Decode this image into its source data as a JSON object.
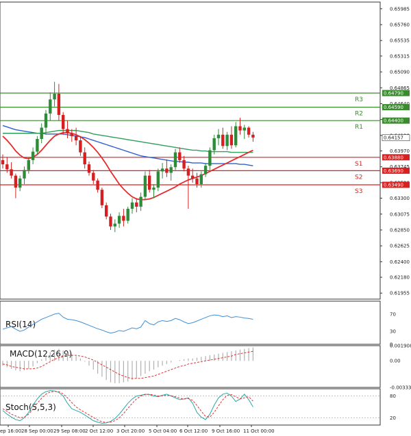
{
  "chart_data": {
    "type": "candlestick",
    "main": {
      "y_ticks": [
        "0.65985",
        "0.65760",
        "0.65535",
        "0.65315",
        "0.65090",
        "0.64865",
        "0.64640",
        "0.64415",
        "0.64190",
        "0.63970",
        "0.63745",
        "0.63520",
        "0.63300",
        "0.63075",
        "0.62850",
        "0.62625",
        "0.62400",
        "0.62180",
        "0.61955"
      ],
      "ylim": [
        0.6187,
        0.6608
      ],
      "current_price": "0.64157",
      "levels": [
        {
          "name": "R3",
          "value": 0.6479,
          "label": "0.64790",
          "color": "#3a8a2e"
        },
        {
          "name": "R2",
          "value": 0.6459,
          "label": "0.64590",
          "color": "#3a8a2e"
        },
        {
          "name": "R1",
          "value": 0.644,
          "label": "0.64400",
          "color": "#3a8a2e"
        },
        {
          "name": "S1",
          "value": 0.6388,
          "label": "0.63880",
          "color": "#d92020"
        },
        {
          "name": "S2",
          "value": 0.6369,
          "label": "0.63690",
          "color": "#d92020"
        },
        {
          "name": "S3",
          "value": 0.6349,
          "label": "0.63490",
          "color": "#d92020"
        }
      ],
      "candles": [
        [
          0.6384,
          0.6392,
          0.6372,
          0.6378
        ],
        [
          0.6378,
          0.6388,
          0.6366,
          0.6371
        ],
        [
          0.6371,
          0.6381,
          0.6358,
          0.6362
        ],
        [
          0.6362,
          0.6365,
          0.633,
          0.6345
        ],
        [
          0.6345,
          0.6362,
          0.634,
          0.6358
        ],
        [
          0.6358,
          0.6375,
          0.635,
          0.637
        ],
        [
          0.637,
          0.6388,
          0.6365,
          0.6384
        ],
        [
          0.6384,
          0.6402,
          0.6378,
          0.6396
        ],
        [
          0.6396,
          0.6418,
          0.6392,
          0.6414
        ],
        [
          0.6414,
          0.6436,
          0.6408,
          0.643
        ],
        [
          0.643,
          0.6455,
          0.642,
          0.645
        ],
        [
          0.645,
          0.648,
          0.644,
          0.647
        ],
        [
          0.647,
          0.6495,
          0.646,
          0.6478
        ],
        [
          0.6478,
          0.6492,
          0.644,
          0.6448
        ],
        [
          0.6448,
          0.6452,
          0.642,
          0.6428
        ],
        [
          0.6428,
          0.644,
          0.6415,
          0.6422
        ],
        [
          0.6422,
          0.6428,
          0.641,
          0.6418
        ],
        [
          0.6418,
          0.643,
          0.6405,
          0.6412
        ],
        [
          0.6412,
          0.6418,
          0.639,
          0.6395
        ],
        [
          0.6395,
          0.6402,
          0.6372,
          0.6378
        ],
        [
          0.6378,
          0.6382,
          0.6362,
          0.6366
        ],
        [
          0.6366,
          0.637,
          0.635,
          0.6355
        ],
        [
          0.6355,
          0.6358,
          0.6338,
          0.6342
        ],
        [
          0.6342,
          0.6345,
          0.6316,
          0.632
        ],
        [
          0.632,
          0.6324,
          0.63,
          0.6304
        ],
        [
          0.6304,
          0.6308,
          0.6285,
          0.629
        ],
        [
          0.629,
          0.63,
          0.6282,
          0.6294
        ],
        [
          0.6294,
          0.631,
          0.6288,
          0.6305
        ],
        [
          0.6305,
          0.6315,
          0.629,
          0.6298
        ],
        [
          0.6298,
          0.6318,
          0.6294,
          0.6315
        ],
        [
          0.6315,
          0.633,
          0.6308,
          0.6324
        ],
        [
          0.6324,
          0.633,
          0.631,
          0.6318
        ],
        [
          0.6318,
          0.6338,
          0.6312,
          0.6332
        ],
        [
          0.6332,
          0.6368,
          0.6328,
          0.6362
        ],
        [
          0.6362,
          0.637,
          0.6338,
          0.6342
        ],
        [
          0.6342,
          0.635,
          0.633,
          0.6345
        ],
        [
          0.6345,
          0.6372,
          0.634,
          0.6368
        ],
        [
          0.6368,
          0.638,
          0.6358,
          0.6372
        ],
        [
          0.6372,
          0.6385,
          0.636,
          0.6366
        ],
        [
          0.6366,
          0.6378,
          0.6355,
          0.6374
        ],
        [
          0.6374,
          0.64,
          0.637,
          0.6395
        ],
        [
          0.6395,
          0.6402,
          0.638,
          0.6384
        ],
        [
          0.6384,
          0.639,
          0.6368,
          0.6372
        ],
        [
          0.6372,
          0.6376,
          0.6315,
          0.6362
        ],
        [
          0.6362,
          0.6372,
          0.6352,
          0.6358
        ],
        [
          0.6358,
          0.6366,
          0.6345,
          0.635
        ],
        [
          0.635,
          0.6368,
          0.6345,
          0.6364
        ],
        [
          0.6364,
          0.638,
          0.636,
          0.6376
        ],
        [
          0.6376,
          0.6402,
          0.637,
          0.6398
        ],
        [
          0.6398,
          0.642,
          0.6392,
          0.6415
        ],
        [
          0.6415,
          0.6428,
          0.6405,
          0.642
        ],
        [
          0.642,
          0.643,
          0.64,
          0.6404
        ],
        [
          0.6404,
          0.6424,
          0.6398,
          0.642
        ],
        [
          0.642,
          0.6432,
          0.64,
          0.6405
        ],
        [
          0.6405,
          0.6438,
          0.6402,
          0.6432
        ],
        [
          0.6432,
          0.6444,
          0.642,
          0.6426
        ],
        [
          0.6426,
          0.6434,
          0.6414,
          0.643
        ],
        [
          0.643,
          0.6432,
          0.6416,
          0.642
        ],
        [
          0.642,
          0.6424,
          0.641,
          0.6416
        ]
      ],
      "series": [
        {
          "color": "#2f5fcf",
          "values": [
            0.6433,
            0.6431,
            0.6429,
            0.6427,
            0.6426,
            0.6425,
            0.6424,
            0.6423,
            0.6422,
            0.6422,
            0.6421,
            0.6421,
            0.6421,
            0.6421,
            0.6421,
            0.642,
            0.6419,
            0.6418,
            0.6417,
            0.6416,
            0.6414,
            0.6412,
            0.641,
            0.6408,
            0.6406,
            0.6404,
            0.6402,
            0.64,
            0.6398,
            0.6396,
            0.6394,
            0.6392,
            0.639,
            0.6389,
            0.6388,
            0.6387,
            0.6386,
            0.6385,
            0.6384,
            0.6383,
            0.6382,
            0.6382,
            0.6381,
            0.6381,
            0.638,
            0.638,
            0.638,
            0.6379,
            0.6379,
            0.6379,
            0.6379,
            0.6379,
            0.6379,
            0.6379,
            0.6379,
            0.6378,
            0.6378,
            0.6377,
            0.6376
          ]
        },
        {
          "color": "#2e9e5b",
          "values": [
            0.6422,
            0.6422,
            0.6422,
            0.6422,
            0.6422,
            0.6422,
            0.6422,
            0.6422,
            0.6422,
            0.6422,
            0.6423,
            0.6424,
            0.6425,
            0.6426,
            0.6426,
            0.6426,
            0.6426,
            0.6426,
            0.6425,
            0.6424,
            0.6423,
            0.6421,
            0.642,
            0.6419,
            0.6418,
            0.6417,
            0.6416,
            0.6415,
            0.6414,
            0.6413,
            0.6412,
            0.6411,
            0.641,
            0.6409,
            0.6408,
            0.6407,
            0.6406,
            0.6405,
            0.6404,
            0.6403,
            0.6402,
            0.6401,
            0.64,
            0.6399,
            0.6398,
            0.6398,
            0.6397,
            0.6397,
            0.6396,
            0.6396,
            0.6396,
            0.6396,
            0.6396,
            0.6395,
            0.6395,
            0.6395,
            0.6395,
            0.6395,
            0.6395
          ]
        },
        {
          "color": "#e52b2b",
          "values": [
            0.6418,
            0.6412,
            0.6405,
            0.6397,
            0.6391,
            0.6387,
            0.6386,
            0.6388,
            0.6392,
            0.6398,
            0.6405,
            0.6412,
            0.6418,
            0.6421,
            0.6423,
            0.6423,
            0.6422,
            0.642,
            0.6417,
            0.6413,
            0.6408,
            0.6402,
            0.6395,
            0.6387,
            0.6378,
            0.6368,
            0.6359,
            0.635,
            0.6343,
            0.6337,
            0.6332,
            0.6329,
            0.6328,
            0.6328,
            0.6329,
            0.6331,
            0.6334,
            0.6337,
            0.634,
            0.6343,
            0.6346,
            0.635,
            0.6353,
            0.6356,
            0.6358,
            0.636,
            0.6362,
            0.6365,
            0.6368,
            0.6371,
            0.6374,
            0.6377,
            0.638,
            0.6383,
            0.6386,
            0.6389,
            0.6392,
            0.6395,
            0.6398
          ]
        }
      ]
    },
    "rsi": {
      "title": "RSI(14)",
      "ticks": [
        "70",
        "30",
        "0"
      ],
      "ylim": [
        0,
        100
      ],
      "color": "#3d8fd6",
      "values": [
        35,
        38,
        41,
        35,
        30,
        33,
        40,
        46,
        52,
        58,
        62,
        66,
        70,
        72,
        63,
        58,
        57,
        55,
        52,
        48,
        44,
        40,
        36,
        33,
        29,
        26,
        28,
        32,
        30,
        34,
        38,
        36,
        40,
        55,
        48,
        45,
        52,
        55,
        53,
        55,
        60,
        57,
        52,
        48,
        50,
        54,
        58,
        62,
        66,
        68,
        67,
        64,
        66,
        62,
        64,
        63,
        61,
        60,
        58
      ]
    },
    "macd": {
      "title": "MACD(12,26,9)",
      "ticks": [
        "0.001908",
        "0.00",
        "-0.003331"
      ],
      "ylim": [
        -0.003331,
        0.001908
      ],
      "hist_color": "#b0b0b0",
      "signal_color": "#e03030",
      "histogram": [
        -0.0006,
        -0.0008,
        -0.001,
        -0.0012,
        -0.0013,
        -0.0012,
        -0.001,
        -0.0007,
        -0.0003,
        0.0002,
        0.0007,
        0.0011,
        0.0014,
        0.0015,
        0.0013,
        0.001,
        0.0008,
        0.0006,
        0.0003,
        -0.0001,
        -0.0006,
        -0.0011,
        -0.0016,
        -0.002,
        -0.0024,
        -0.0027,
        -0.0028,
        -0.0028,
        -0.0027,
        -0.0026,
        -0.0024,
        -0.0022,
        -0.0019,
        -0.0016,
        -0.0013,
        -0.0011,
        -0.0008,
        -0.0006,
        -0.0004,
        -0.0002,
        0.0,
        0.0001,
        0.0002,
        0.0003,
        0.0003,
        0.0004,
        0.0005,
        0.0006,
        0.0007,
        0.0008,
        0.0009,
        0.001,
        0.0011,
        0.0012,
        0.0013,
        0.0014,
        0.0015,
        0.0016,
        0.0017
      ],
      "signal": [
        -0.0004,
        -0.0005,
        -0.0007,
        -0.0008,
        -0.0009,
        -0.001,
        -0.001,
        -0.001,
        -0.0009,
        -0.0007,
        -0.0004,
        -0.0001,
        0.0002,
        0.0004,
        0.0006,
        0.0007,
        0.0007,
        0.0007,
        0.0006,
        0.0005,
        0.0003,
        0.0001,
        -0.0002,
        -0.0005,
        -0.0008,
        -0.0011,
        -0.0014,
        -0.0017,
        -0.0019,
        -0.0021,
        -0.0022,
        -0.0022,
        -0.0022,
        -0.0021,
        -0.002,
        -0.0019,
        -0.0017,
        -0.0015,
        -0.0013,
        -0.0011,
        -0.0009,
        -0.0007,
        -0.0006,
        -0.0004,
        -0.0003,
        -0.0002,
        -0.0001,
        0.0,
        0.0001,
        0.0002,
        0.0003,
        0.0004,
        0.0005,
        0.0006,
        0.0008,
        0.0009,
        0.001,
        0.0011,
        0.0012
      ]
    },
    "stoch": {
      "title": "Stoch(5,5,3)",
      "ticks": [
        "80",
        "20"
      ],
      "ylim": [
        0,
        100
      ],
      "k_color": "#2aa6a6",
      "d_color": "#e03030",
      "k": [
        40,
        30,
        22,
        15,
        12,
        20,
        35,
        55,
        72,
        85,
        92,
        95,
        94,
        90,
        80,
        60,
        45,
        40,
        35,
        28,
        20,
        12,
        8,
        5,
        6,
        10,
        18,
        30,
        45,
        60,
        72,
        80,
        82,
        85,
        84,
        80,
        78,
        82,
        85,
        80,
        75,
        70,
        72,
        75,
        60,
        35,
        22,
        15,
        30,
        55,
        75,
        85,
        88,
        80,
        65,
        72,
        85,
        70,
        50
      ],
      "d": [
        45,
        38,
        30,
        25,
        20,
        22,
        30,
        44,
        60,
        74,
        85,
        91,
        93,
        92,
        86,
        75,
        62,
        50,
        42,
        35,
        28,
        21,
        14,
        9,
        7,
        8,
        12,
        20,
        32,
        46,
        60,
        72,
        80,
        84,
        85,
        83,
        80,
        81,
        82,
        81,
        78,
        74,
        72,
        73,
        68,
        54,
        38,
        24,
        22,
        35,
        53,
        70,
        82,
        84,
        78,
        72,
        75,
        78,
        66
      ]
    },
    "x_ticks": [
      "ep 16:00",
      "28 Sep 00:00",
      "29 Sep 08:00",
      "2 Oct 12:00",
      "3 Oct 20:00",
      "5 Oct 04:00",
      "6 Oct 12:00",
      "9 Oct 16:00",
      "11 Oct 00:00"
    ]
  }
}
